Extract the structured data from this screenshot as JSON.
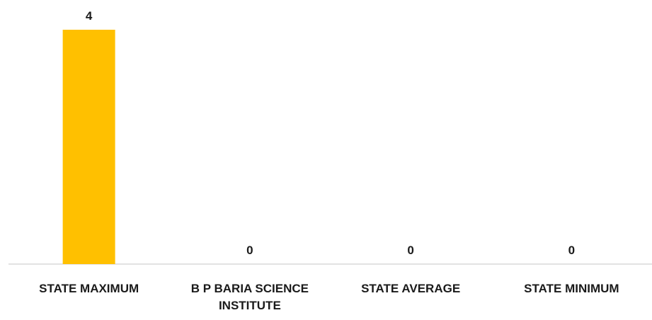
{
  "chart_data": {
    "type": "bar",
    "categories": [
      [
        "STATE MAXIMUM"
      ],
      [
        "B P BARIA SCIENCE",
        "INSTITUTE"
      ],
      [
        "STATE AVERAGE"
      ],
      [
        "STATE MINIMUM"
      ]
    ],
    "values": [
      4,
      0,
      0,
      0
    ],
    "data_labels": [
      "4",
      "0",
      "0",
      "0"
    ],
    "title": "",
    "xlabel": "",
    "ylabel": "",
    "ylim": [
      0,
      4
    ],
    "grid": false,
    "legend": "none",
    "bar_color": "#ffc000",
    "axis_color": "#d9d9d9"
  }
}
